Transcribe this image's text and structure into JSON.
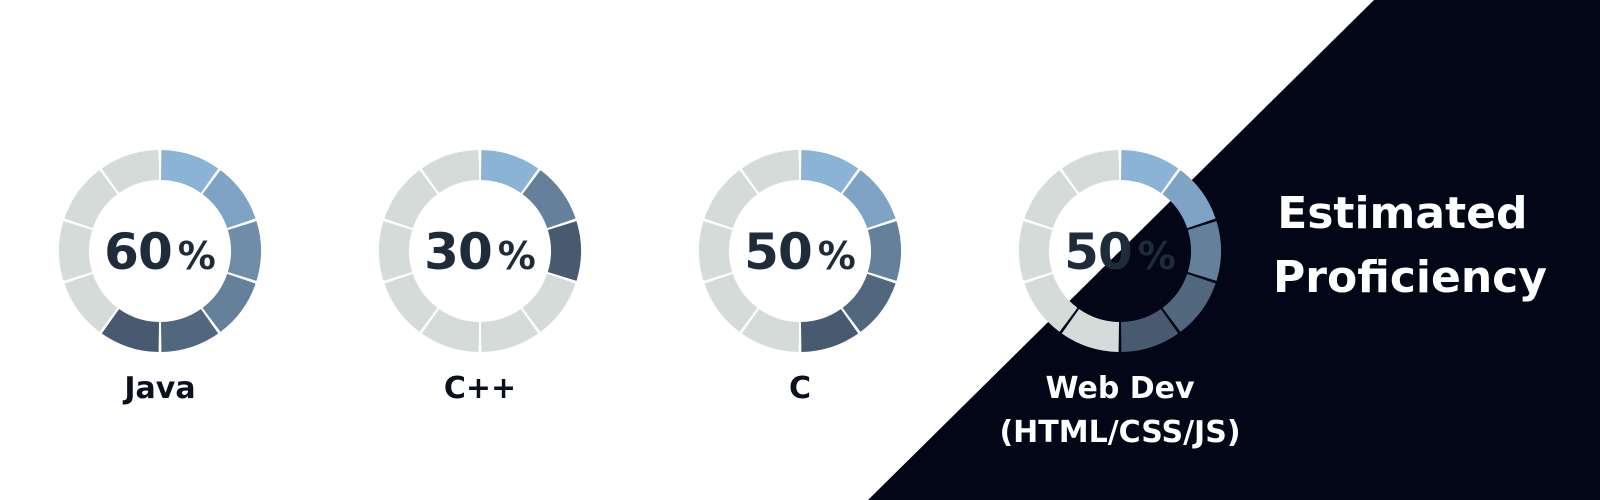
{
  "title_lines": [
    "Estimated",
    "Proficiency"
  ],
  "colors": {
    "background": "#ffffff",
    "dark_panel": "#030617",
    "track": "#d5dbd8",
    "number": "#1d2b3a",
    "label_dark": "#0b0f1e",
    "label_light": "#ffffff",
    "segment_shades": [
      "#8ab3d6",
      "#86abcd",
      "#7fa3c4",
      "#7899b8",
      "#6f8da9",
      "#64809a",
      "#5a738b",
      "#51677d",
      "#4b5f74",
      "#475a6f"
    ]
  },
  "chart_data": {
    "type": "donut",
    "segments_per_ring": 10,
    "items": [
      {
        "name": "Java",
        "label_lines": [
          "Java"
        ],
        "value": 60,
        "unit": "%"
      },
      {
        "name": "C++",
        "label_lines": [
          "C++"
        ],
        "value": 30,
        "unit": "%"
      },
      {
        "name": "C",
        "label_lines": [
          "C"
        ],
        "value": 50,
        "unit": "%"
      },
      {
        "name": "Web Dev (HTML/CSS/JS)",
        "label_lines": [
          "Web Dev",
          "(HTML/CSS/JS)"
        ],
        "value": 50,
        "unit": "%"
      }
    ]
  }
}
